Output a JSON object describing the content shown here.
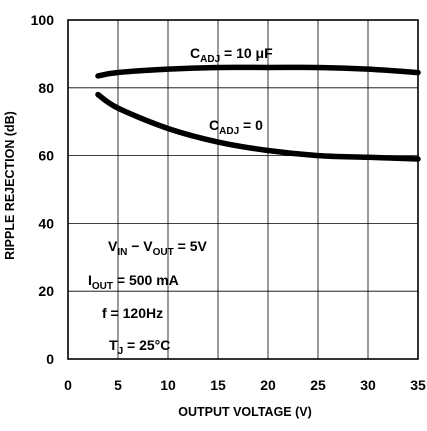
{
  "chart_data": {
    "type": "line",
    "xlabel": "OUTPUT VOLTAGE (V)",
    "ylabel": "RIPPLE REJECTION (dB)",
    "xlim": [
      0,
      35
    ],
    "ylim": [
      0,
      100
    ],
    "x_ticks": [
      "0",
      "5",
      "10",
      "15",
      "20",
      "25",
      "30",
      "35"
    ],
    "y_ticks": [
      "0",
      "20",
      "40",
      "60",
      "80",
      "100"
    ],
    "grid": true,
    "series": [
      {
        "label_main": "C",
        "label_sub": "ADJ",
        "label_value": " = 10 μF",
        "color": "#000000",
        "x": [
          3,
          5,
          10,
          15,
          20,
          25,
          30,
          35
        ],
        "y": [
          83.5,
          84.5,
          85.5,
          86,
          86,
          86,
          85.5,
          84.5
        ]
      },
      {
        "label_main": "C",
        "label_sub": "ADJ",
        "label_value": " = 0",
        "color": "#000000",
        "x": [
          3,
          5,
          10,
          15,
          20,
          25,
          30,
          35
        ],
        "y": [
          78,
          74,
          68,
          64,
          61.5,
          60,
          59.5,
          59
        ]
      }
    ],
    "conditions": [
      {
        "main": "V",
        "sub": "IN",
        "mid": " − V",
        "sub2": "OUT",
        "rest": " = 5V"
      },
      {
        "main": "I",
        "sub": "OUT",
        "mid": " = 500 mA",
        "sub2": "",
        "rest": ""
      },
      {
        "main": "f = 120Hz",
        "sub": "",
        "mid": "",
        "sub2": "",
        "rest": ""
      },
      {
        "main": "T",
        "sub": "J",
        "mid": " = 25°C",
        "sub2": "",
        "rest": ""
      }
    ]
  }
}
